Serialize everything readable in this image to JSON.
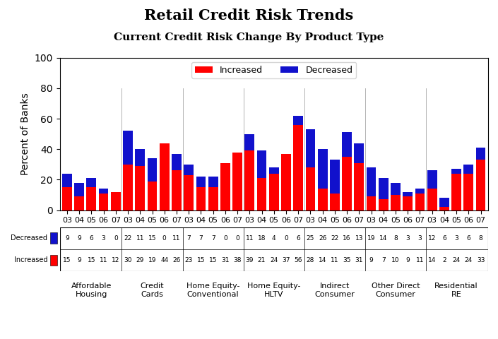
{
  "chart_data": {
    "type": "bar",
    "title": "Retail Credit Risk Trends",
    "subtitle": "Current Credit Risk Change By Product Type",
    "y_label": "Percent of Banks",
    "categories": [
      "03",
      "04",
      "05",
      "06",
      "07",
      "03",
      "04",
      "05",
      "06",
      "07",
      "03",
      "04",
      "05",
      "06",
      "07",
      "03",
      "04",
      "05",
      "06",
      "07",
      "03",
      "04",
      "05",
      "06",
      "07",
      "03",
      "04",
      "05",
      "06",
      "07",
      "03",
      "04",
      "05",
      "06",
      "07"
    ],
    "group_labels": [
      "Affordable\nHousing",
      "Credit\nCards",
      "Home Equity-\nConventional",
      "Home Equity-\nHLTV",
      "Indirect\nConsumer",
      "Other Direct\nConsumer",
      "Residential\nRE"
    ],
    "series": [
      {
        "name": "Increased",
        "color": "#FF0000",
        "values": [
          15,
          9,
          15,
          11,
          12,
          30,
          29,
          19,
          44,
          26,
          23,
          15,
          15,
          31,
          38,
          39,
          21,
          24,
          37,
          56,
          28,
          14,
          11,
          35,
          31,
          9,
          7,
          10,
          9,
          11,
          14,
          2,
          24,
          24,
          33
        ]
      },
      {
        "name": "Decreased",
        "color": "#1111CC",
        "values": [
          9,
          9,
          6,
          3,
          0,
          22,
          11,
          15,
          0,
          11,
          7,
          7,
          7,
          0,
          0,
          11,
          18,
          4,
          0,
          6,
          25,
          26,
          22,
          16,
          13,
          19,
          14,
          8,
          3,
          3,
          12,
          6,
          3,
          6,
          8
        ]
      }
    ],
    "stacked": true,
    "legend": "upper center",
    "ylim": [
      0,
      100
    ],
    "yticks": [
      0,
      20,
      40,
      60,
      80,
      100
    ]
  }
}
